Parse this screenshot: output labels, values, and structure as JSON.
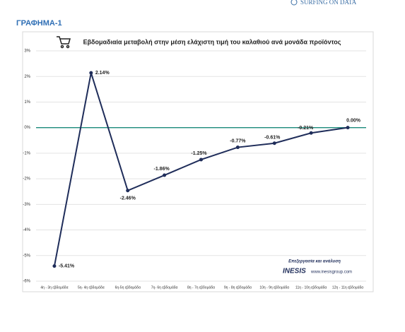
{
  "page": {
    "logo": "SURFING ON DATA",
    "heading": "ΓΡΑΦΗΜΑ-1",
    "credit": "Επεξεργασία και ανάλυση",
    "brand": "INESIS",
    "website": "www.inesisgroup.com"
  },
  "chart_data": {
    "type": "line",
    "title": "Εβδομαδιαία μεταβολή στην μέση ελάχιστη τιμή του καλαθιού ανά μονάδα προϊόντος",
    "categories": [
      "4η - 3η εβδομάδα",
      "5η- 4η εβδομάδα",
      "6η-5η εβδομάδα",
      "7η- 6η εβδομάδα",
      "8η - 7η εβδομάδα",
      "9η - 8η εβδομάδα",
      "10η - 9η εβδομάδα",
      "11η - 10η εβδομάδα",
      "12η - 11η εβδομάδα"
    ],
    "values": [
      -5.41,
      2.14,
      -2.46,
      -1.86,
      -1.25,
      -0.77,
      -0.61,
      -0.21,
      0.0
    ],
    "value_labels": [
      "-5.41%",
      "2.14%",
      "-2.46%",
      "-1.86%",
      "-1.25%",
      "-0.77%",
      "-0.61%",
      "-0.21%",
      "0.00%"
    ],
    "color": "#1f2d5a",
    "zero_line_color": "#1a8a7a",
    "ylim": [
      -6,
      3
    ],
    "yticks": [
      {
        "value": 3,
        "label": "3%"
      },
      {
        "value": 2,
        "label": "2%"
      },
      {
        "value": 1,
        "label": "1%"
      },
      {
        "value": 0,
        "label": "0%"
      },
      {
        "value": -1,
        "label": "-1%"
      },
      {
        "value": -2,
        "label": "-2%"
      },
      {
        "value": -3,
        "label": "-3%"
      },
      {
        "value": -4,
        "label": "-4%"
      },
      {
        "value": -5,
        "label": "-5%"
      },
      {
        "value": -6,
        "label": "-6%"
      }
    ],
    "grid": true
  }
}
